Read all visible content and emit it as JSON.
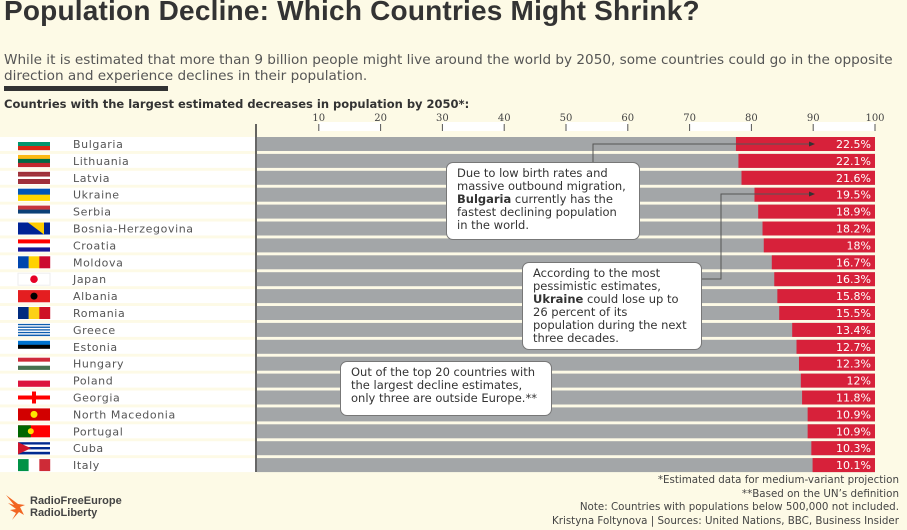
{
  "header": {
    "title": "Population Decline: Which Countries Might Shrink?",
    "subtitle": "While it is estimated that more than 9 billion people might live around the world by 2050, some countries could go in the opposite direction and experience declines in their population."
  },
  "chart_data": {
    "type": "bar",
    "orientation": "horizontal",
    "title": "Countries with the largest estimated decreases in population by 2050*:",
    "xlim": [
      0,
      100
    ],
    "ticks": [
      10,
      20,
      30,
      40,
      50,
      60,
      70,
      80,
      90,
      100
    ],
    "categories": [
      "Bulgaria",
      "Lithuania",
      "Latvia",
      "Ukraine",
      "Serbia",
      "Bosnia-Herzegovina",
      "Croatia",
      "Moldova",
      "Japan",
      "Albania",
      "Romania",
      "Greece",
      "Estonia",
      "Hungary",
      "Poland",
      "Georgia",
      "North Macedonia",
      "Portugal",
      "Cuba",
      "Italy"
    ],
    "values": [
      22.5,
      22.1,
      21.6,
      19.5,
      18.9,
      18.2,
      18,
      16.7,
      16.3,
      15.8,
      15.5,
      13.4,
      12.7,
      12.3,
      12,
      11.8,
      10.9,
      10.9,
      10.3,
      10.1
    ],
    "value_labels": [
      "22.5%",
      "22.1%",
      "21.6%",
      "19.5%",
      "18.9%",
      "18.2%",
      "18%",
      "16.7%",
      "16.3%",
      "15.8%",
      "15.5%",
      "13.4%",
      "12.7%",
      "12.3%",
      "12%",
      "11.8%",
      "10.9%",
      "10.9%",
      "10.3%",
      "10.1%"
    ],
    "colors": {
      "decline": "#d7213a",
      "remaining": "#a3a6a8",
      "background": "#fdfae6"
    }
  },
  "flags": [
    {
      "type": "h",
      "c": [
        "#ffffff",
        "#00966e",
        "#d62612"
      ]
    },
    {
      "type": "h",
      "c": [
        "#fdb913",
        "#006a44",
        "#c1272d"
      ]
    },
    {
      "type": "h",
      "c": [
        "#9e3039",
        "#9e3039",
        "#ffffff",
        "#9e3039",
        "#9e3039"
      ]
    },
    {
      "type": "h",
      "c": [
        "#0057b7",
        "#ffd700"
      ]
    },
    {
      "type": "h",
      "c": [
        "#c6363c",
        "#0c4076",
        "#ffffff"
      ]
    },
    {
      "type": "bosnia",
      "c": [
        "#002395",
        "#fecb00"
      ]
    },
    {
      "type": "h",
      "c": [
        "#ff0000",
        "#ffffff",
        "#171796"
      ]
    },
    {
      "type": "v",
      "c": [
        "#0046ae",
        "#ffd200",
        "#cc092f"
      ]
    },
    {
      "type": "japan",
      "c": [
        "#ffffff",
        "#e60026"
      ]
    },
    {
      "type": "h",
      "c": [
        "#e41e20"
      ],
      "emblem": "#000000"
    },
    {
      "type": "v",
      "c": [
        "#002b7f",
        "#fcd116",
        "#ce1126"
      ]
    },
    {
      "type": "h",
      "c": [
        "#0d5eaf",
        "#ffffff",
        "#0d5eaf",
        "#ffffff",
        "#0d5eaf",
        "#ffffff",
        "#0d5eaf",
        "#ffffff",
        "#0d5eaf"
      ]
    },
    {
      "type": "h",
      "c": [
        "#0072ce",
        "#000000",
        "#ffffff"
      ]
    },
    {
      "type": "h",
      "c": [
        "#ce2939",
        "#ffffff",
        "#477050"
      ]
    },
    {
      "type": "h",
      "c": [
        "#ffffff",
        "#dc143c"
      ]
    },
    {
      "type": "georgia",
      "c": [
        "#ffffff",
        "#ff0000"
      ]
    },
    {
      "type": "h",
      "c": [
        "#d20000"
      ],
      "emblem": "#ffe600"
    },
    {
      "type": "v2",
      "c": [
        "#006600",
        "#ff0000"
      ]
    },
    {
      "type": "h",
      "c": [
        "#002a8f",
        "#ffffff",
        "#002a8f",
        "#ffffff",
        "#002a8f"
      ],
      "tri": "#cf142b"
    },
    {
      "type": "v",
      "c": [
        "#009246",
        "#ffffff",
        "#ce2b37"
      ]
    }
  ],
  "callouts": {
    "bulgaria": {
      "pre": "Due to low birth rates and massive outbound migration, ",
      "bold": "Bulgaria",
      "post": " currently has the fastest declining population in the world."
    },
    "ukraine": {
      "pre": "According to the most pessimistic estimates, ",
      "bold": "Ukraine",
      "post": " could lose up to 26 percent of its population during the next three decades."
    },
    "europe": {
      "text": "Out of the top 20 countries with the largest decline estimates, only three are outside Europe.**"
    }
  },
  "footer": {
    "notes": [
      "*Estimated data for medium-variant projection",
      "**Based on the UN’s definition",
      "Note: Countries with populations below 500,000 not included.",
      "Kristyna Foltynova | Sources: United Nations, BBC, Business Insider"
    ],
    "logo": [
      "RadioFreeEurope",
      "RadioLiberty"
    ],
    "logo_color": "#f26522"
  }
}
